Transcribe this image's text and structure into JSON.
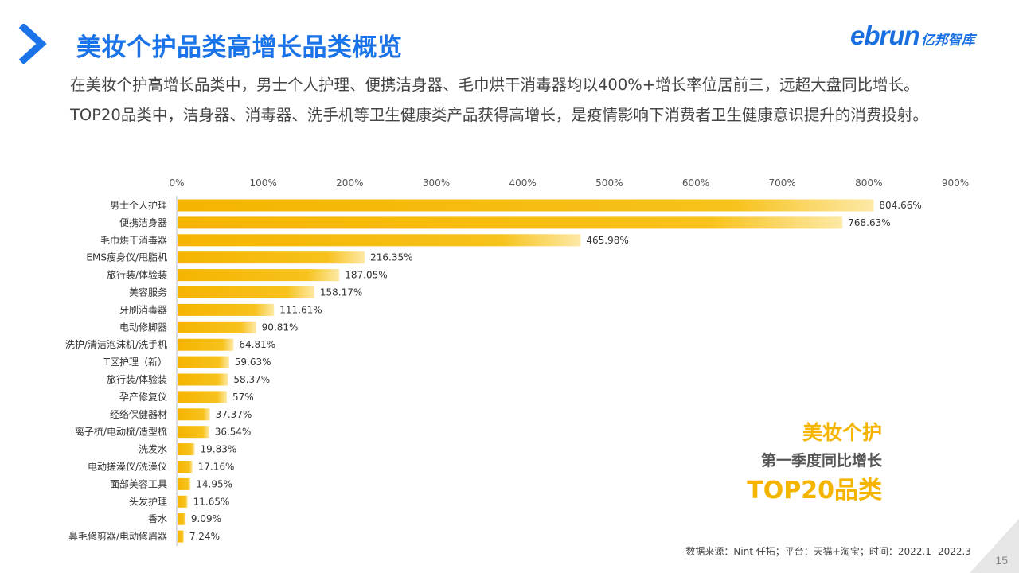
{
  "header": {
    "title": "美妆个护品类高增长品类概览",
    "logo_en": "ebrun",
    "logo_cn": "亿邦智库"
  },
  "description": "在美妆个护高增长品类中，男士个人护理、便携洁身器、毛巾烘干消毒器均以400%+增长率位居前三，远超大盘同比增长。TOP20品类中，洁身器、消毒器、洗手机等卫生健康类产品获得高增长，是疫情影响下消费者卫生健康意识提升的消费投射。",
  "callout": {
    "line1": "美妆个护",
    "line2": "第一季度同比增长",
    "line3": "TOP20品类"
  },
  "source": "数据来源：Nint 任拓；平台：天猫+淘宝；时间：2022.1- 2022.3",
  "page_number": "15",
  "colors": {
    "accent_blue": "#1a73e8",
    "bar": "#f5b400",
    "bar_light": "#fde9a6"
  },
  "chart_data": {
    "type": "bar",
    "orientation": "horizontal",
    "categories": [
      "男士个人护理",
      "便携洁身器",
      "毛巾烘干消毒器",
      "EMS瘦身仪/甩脂机",
      "旅行装/体验装",
      "美容服务",
      "牙刷消毒器",
      "电动修脚器",
      "洗护/清洁泡沫机/洗手机",
      "T区护理（新）",
      "旅行装/体验装",
      "孕产修复仪",
      "经络保健器材",
      "离子梳/电动梳/造型梳",
      "洗发水",
      "电动搓澡仪/洗澡仪",
      "面部美容工具",
      "头发护理",
      "香水",
      "鼻毛修剪器/电动修眉器"
    ],
    "values": [
      804.66,
      768.63,
      465.98,
      216.35,
      187.05,
      158.17,
      111.61,
      90.81,
      64.81,
      59.63,
      58.37,
      57,
      37.37,
      36.54,
      19.83,
      17.16,
      14.95,
      11.65,
      9.09,
      7.24
    ],
    "value_labels": [
      "804.66%",
      "768.63%",
      "465.98%",
      "216.35%",
      "187.05%",
      "158.17%",
      "111.61%",
      "90.81%",
      "64.81%",
      "59.63%",
      "58.37%",
      "57%",
      "37.37%",
      "36.54%",
      "19.83%",
      "17.16%",
      "14.95%",
      "11.65%",
      "9.09%",
      "7.24%"
    ],
    "x_ticks": [
      0,
      100,
      200,
      300,
      400,
      500,
      600,
      700,
      800,
      900
    ],
    "x_tick_labels": [
      "0%",
      "100%",
      "200%",
      "300%",
      "400%",
      "500%",
      "600%",
      "700%",
      "800%",
      "900%"
    ],
    "xlim": [
      0,
      900
    ],
    "x_axis_position": "top",
    "grid": false,
    "legend": "none"
  }
}
